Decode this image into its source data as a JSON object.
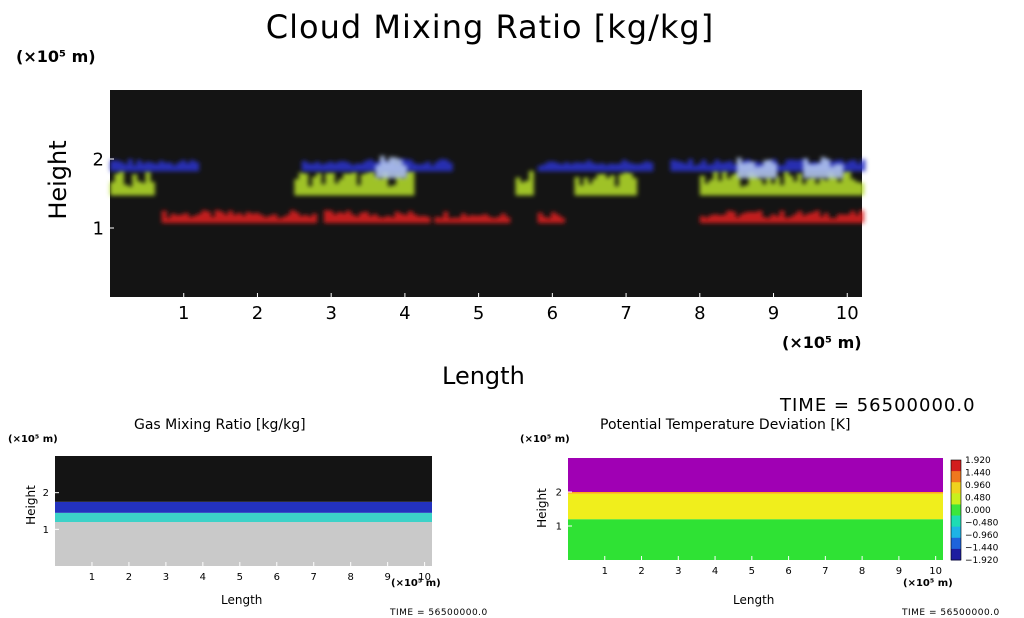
{
  "colors": {
    "plot_bg": "#141414",
    "gas_ground": "#c9c9c9",
    "pt_top": "#a000b4",
    "pt_ground": "#2fe234",
    "pt_mid": "#f0ee1c"
  },
  "chart_data": [
    {
      "id": "cloud",
      "type": "heatmap",
      "title": "Cloud Mixing Ratio [kg/kg]",
      "xlabel": "Length",
      "ylabel": "Height",
      "x_unit": "(×10⁵ m)",
      "y_unit": "(×10⁵ m)",
      "xlim": [
        0,
        10.2
      ],
      "ylim": [
        0,
        3
      ],
      "xticks": [
        1,
        2,
        3,
        4,
        5,
        6,
        7,
        8,
        9,
        10
      ],
      "yticks": [
        1,
        2
      ],
      "time_label": "TIME = 56500000.0",
      "layers": [
        {
          "name": "low cloud (red)",
          "color": "#dc1e1e",
          "base": 1.1,
          "segments": [
            [
              0.7,
              2.8
            ],
            [
              2.9,
              4.3
            ],
            [
              4.4,
              5.4
            ],
            [
              5.8,
              6.1
            ],
            [
              8.0,
              10.2
            ]
          ]
        },
        {
          "name": "mid cloud (yellow-green)",
          "color": "#b4dc28",
          "base": 1.5,
          "segments": [
            [
              0,
              0.6
            ],
            [
              2.5,
              4.1
            ],
            [
              5.5,
              5.7
            ],
            [
              6.3,
              7.1
            ],
            [
              8.0,
              10.2
            ]
          ]
        },
        {
          "name": "upper cloud (blue)",
          "color": "#2832c8",
          "base": 1.85,
          "segments": [
            [
              0,
              1.2
            ],
            [
              2.6,
              4.6
            ],
            [
              5.8,
              7.3
            ],
            [
              7.6,
              10.2
            ]
          ]
        },
        {
          "name": "cloud top (white-blue)",
          "color": "#b4c8f0",
          "base": 1.75,
          "segments": [
            [
              3.6,
              4.0
            ],
            [
              8.5,
              9.0
            ],
            [
              9.4,
              9.9
            ]
          ]
        }
      ]
    },
    {
      "id": "gas",
      "type": "heatmap",
      "title": "Gas Mixing Ratio [kg/kg]",
      "xlabel": "Length",
      "ylabel": "Height",
      "x_unit": "(×10⁵ m)",
      "y_unit": "(×10⁵ m)",
      "xlim": [
        0,
        10.2
      ],
      "ylim": [
        0,
        3
      ],
      "xticks": [
        1,
        2,
        3,
        4,
        5,
        6,
        7,
        8,
        9,
        10
      ],
      "yticks": [
        1,
        2
      ],
      "time_label": "TIME = 56500000.0",
      "layers": [
        {
          "name": "saturated lower layer",
          "color": "#c9c9c9",
          "from": 0,
          "to": 1.2
        },
        {
          "name": "cyan transition",
          "color": "#3cd2c8",
          "from": 1.2,
          "to": 1.45
        },
        {
          "name": "blue band",
          "color": "#2332be",
          "from": 1.45,
          "to": 1.75
        },
        {
          "name": "dry upper layer",
          "color": "#141414",
          "from": 1.75,
          "to": 3.0
        }
      ]
    },
    {
      "id": "pt",
      "type": "heatmap",
      "title": "Potential Temperature Deviation [K]",
      "xlabel": "Length",
      "ylabel": "Height",
      "x_unit": "(×10⁵ m)",
      "y_unit": "(×10⁵ m)",
      "xlim": [
        0,
        10.2
      ],
      "ylim": [
        0,
        3
      ],
      "xticks": [
        1,
        2,
        3,
        4,
        5,
        6,
        7,
        8,
        9,
        10
      ],
      "yticks": [
        1,
        2
      ],
      "time_label": "TIME = 56500000.0",
      "colorbar": {
        "levels": [
          "1.920",
          "1.440",
          "0.960",
          "0.480",
          "0.000",
          "−0.480",
          "−0.960",
          "−1.440",
          "−1.920"
        ],
        "colors": [
          "#d21e1e",
          "#f0781e",
          "#f0d21e",
          "#c8f01e",
          "#3ce63c",
          "#1edcb4",
          "#1eb4e6",
          "#1e64dc",
          "#1e1ea0"
        ]
      },
      "layers": [
        {
          "name": "stable lower layer",
          "color": "#2fe234",
          "from": 0,
          "to": 1.2
        },
        {
          "name": "positive deviation band",
          "color": "#f0ee1c",
          "from": 1.2,
          "to": 1.95
        },
        {
          "name": "inversion",
          "color": "#ffaa14",
          "from": 1.95,
          "to": 2.0
        },
        {
          "name": "upper negative layer",
          "color": "#a000b4",
          "from": 2.0,
          "to": 3.0
        }
      ]
    }
  ]
}
